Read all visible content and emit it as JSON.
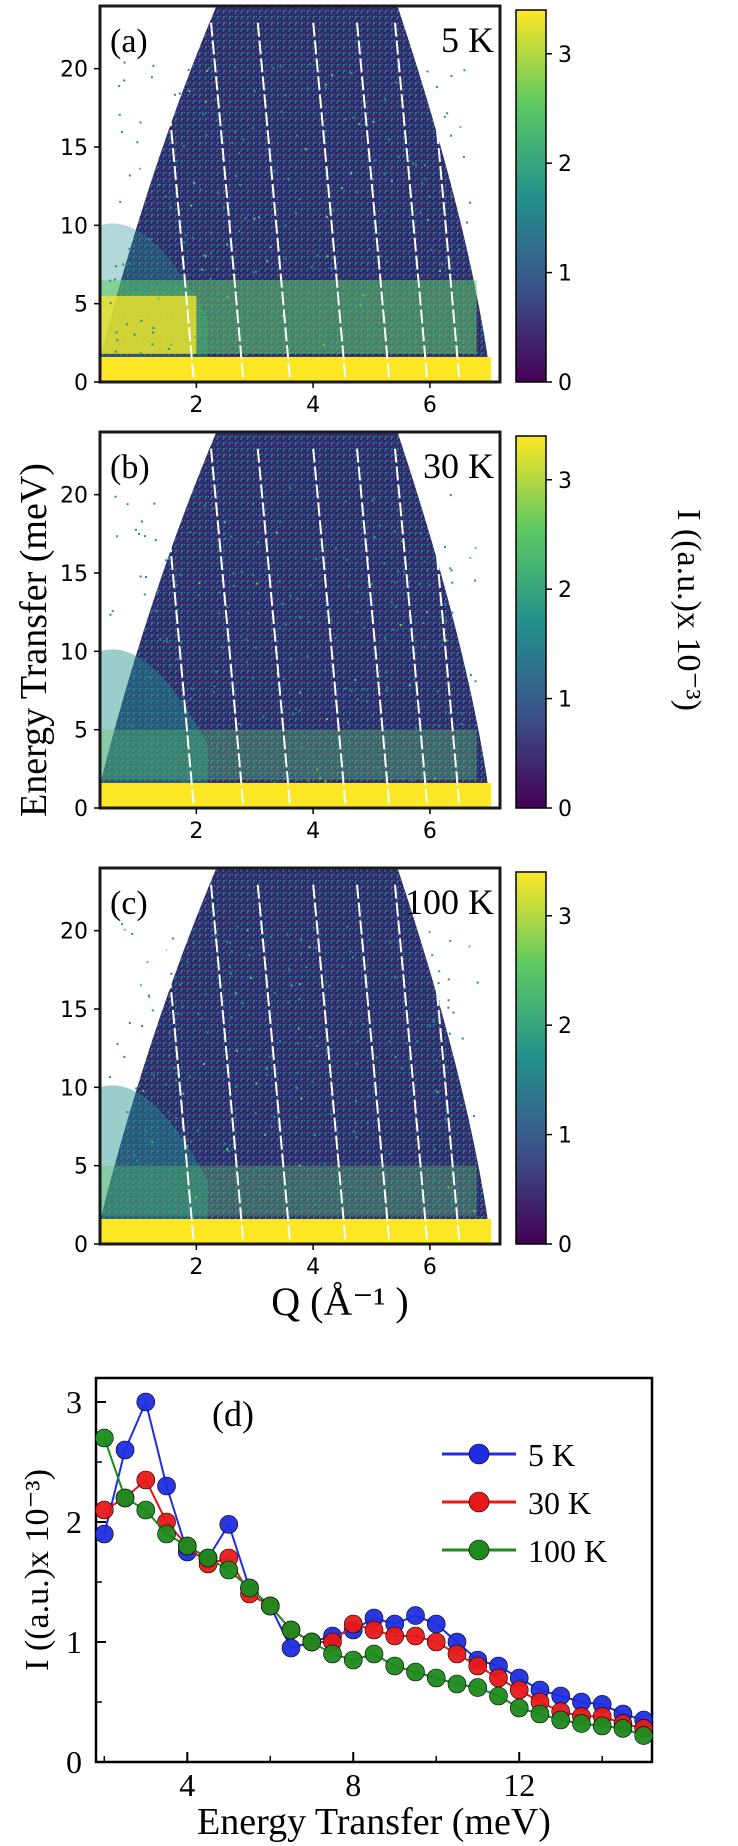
{
  "colors": {
    "yellow": "#fde725",
    "green": "#5ec962",
    "teal": "#21918c",
    "blue": "#3b528b",
    "purple": "#440154",
    "series_5K": "#1f2de0",
    "series_30K": "#e81818",
    "series_100K": "#1e8a1e"
  },
  "shared_labels": {
    "ylabel_top": "Energy Transfer (meV)",
    "colorbar_label": "I ((a.u.)x 10⁻³)",
    "xlabel_top": "Q (Å⁻¹ )"
  },
  "chart_data": [
    {
      "type": "heatmap",
      "panel": "(a)",
      "temperature": "5 K",
      "xlabel": "Q (Å⁻¹ )",
      "ylabel": "Energy Transfer (meV)",
      "xlim": [
        0.35,
        7.2
      ],
      "ylim": [
        0,
        24
      ],
      "xticks": [
        "2",
        "4",
        "6"
      ],
      "yticks": [
        "0",
        "5",
        "10",
        "15",
        "20"
      ],
      "colorbar": {
        "range": [
          0,
          3.4
        ],
        "ticks": [
          "0",
          "1",
          "2",
          "3"
        ]
      }
    },
    {
      "type": "heatmap",
      "panel": "(b)",
      "temperature": "30 K",
      "xlabel": "Q (Å⁻¹ )",
      "ylabel": "Energy Transfer (meV)",
      "xlim": [
        0.35,
        7.2
      ],
      "ylim": [
        0,
        24
      ],
      "xticks": [
        "2",
        "4",
        "6"
      ],
      "yticks": [
        "0",
        "5",
        "10",
        "15",
        "20"
      ],
      "colorbar": {
        "range": [
          0,
          3.4
        ],
        "ticks": [
          "0",
          "1",
          "2",
          "3"
        ]
      }
    },
    {
      "type": "heatmap",
      "panel": "(c)",
      "temperature": "100 K",
      "xlabel": "Q (Å⁻¹ )",
      "ylabel": "Energy Transfer (meV)",
      "xlim": [
        0.35,
        7.2
      ],
      "ylim": [
        0,
        24
      ],
      "xticks": [
        "2",
        "4",
        "6"
      ],
      "yticks": [
        "0",
        "5",
        "10",
        "15",
        "20"
      ],
      "colorbar": {
        "range": [
          0,
          3.4
        ],
        "ticks": [
          "0",
          "1",
          "2",
          "3"
        ]
      }
    },
    {
      "type": "line",
      "panel": "(d)",
      "xlabel": "Energy Transfer (meV)",
      "ylabel": "I ((a.u.)x 10⁻³)",
      "xlim": [
        1.8,
        15.2
      ],
      "ylim": [
        0,
        3.2
      ],
      "xticks": [
        "4",
        "8",
        "12"
      ],
      "yticks": [
        "0",
        "1",
        "2",
        "3"
      ],
      "legend": [
        "5 K",
        "30 K",
        "100 K"
      ],
      "x": [
        2.0,
        2.5,
        3.0,
        3.5,
        4.0,
        4.5,
        5.0,
        5.5,
        6.0,
        6.5,
        7.0,
        7.5,
        8.0,
        8.5,
        9.0,
        9.5,
        10.0,
        10.5,
        11.0,
        11.5,
        12.0,
        12.5,
        13.0,
        13.5,
        14.0,
        14.5,
        15.0
      ],
      "series": [
        {
          "name": "5 K",
          "values": [
            1.9,
            2.6,
            3.0,
            2.3,
            1.75,
            1.7,
            1.98,
            1.45,
            1.3,
            0.95,
            1.0,
            1.05,
            1.1,
            1.2,
            1.15,
            1.22,
            1.15,
            1.0,
            0.85,
            0.8,
            0.7,
            0.6,
            0.55,
            0.5,
            0.48,
            0.4,
            0.35
          ]
        },
        {
          "name": "30 K",
          "values": [
            2.1,
            2.2,
            2.35,
            2.0,
            1.8,
            1.65,
            1.7,
            1.4,
            1.3,
            1.1,
            1.0,
            1.0,
            1.15,
            1.1,
            1.05,
            1.05,
            1.0,
            0.9,
            0.8,
            0.7,
            0.6,
            0.5,
            0.42,
            0.38,
            0.38,
            0.32,
            0.28
          ]
        },
        {
          "name": "100 K",
          "values": [
            2.7,
            2.2,
            2.1,
            1.9,
            1.8,
            1.7,
            1.6,
            1.45,
            1.3,
            1.1,
            1.0,
            0.9,
            0.85,
            0.9,
            0.8,
            0.75,
            0.7,
            0.65,
            0.62,
            0.55,
            0.45,
            0.4,
            0.35,
            0.32,
            0.3,
            0.28,
            0.22
          ]
        }
      ]
    }
  ]
}
